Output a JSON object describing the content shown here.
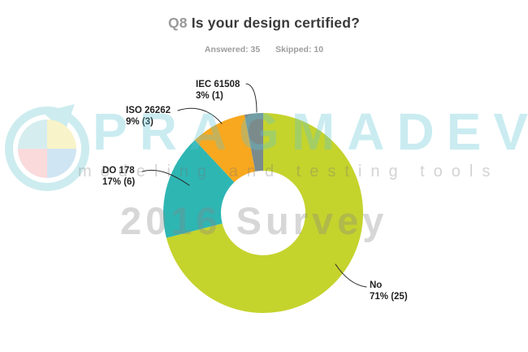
{
  "header": {
    "question_number": "Q8",
    "question_title": "Is your design certified?",
    "answered_label": "Answered: 35",
    "skipped_label": "Skipped: 10"
  },
  "chart_data": {
    "type": "pie",
    "subtype": "donut",
    "title": "Q8 Is your design certified?",
    "answered": 35,
    "skipped": 10,
    "legend_position": "none",
    "start_angle_deg": 0,
    "direction": "clockwise",
    "slices": [
      {
        "label": "No",
        "percent": 71,
        "count": 25,
        "stat": "71% (25)",
        "color": "#c5d32d"
      },
      {
        "label": "DO 178",
        "percent": 17,
        "count": 6,
        "stat": "17% (6)",
        "color": "#2eb6b3"
      },
      {
        "label": "ISO 26262",
        "percent": 9,
        "count": 3,
        "stat": "9% (3)",
        "color": "#f8a81e"
      },
      {
        "label": "IEC 61508",
        "percent": 3,
        "count": 1,
        "stat": "3% (1)",
        "color": "#7b8b8c"
      }
    ]
  },
  "watermark": {
    "brand": "PRAGMADEV",
    "tagline": "modeling and testing tools",
    "survey": "2016 Survey"
  },
  "colors": {
    "title_number": "#9a9a9a",
    "title_text": "#3a3a3a",
    "stats_text": "#9d9d9d",
    "label_text": "#222222",
    "leader_line": "#2b2b2b"
  }
}
